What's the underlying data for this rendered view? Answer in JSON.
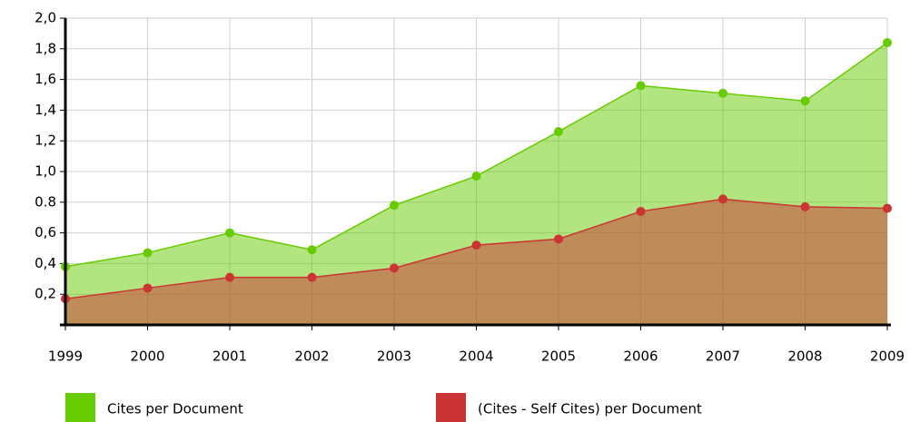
{
  "chart_data": {
    "type": "area",
    "categories": [
      "1999",
      "2000",
      "2001",
      "2002",
      "2003",
      "2004",
      "2005",
      "2006",
      "2007",
      "2008",
      "2009"
    ],
    "series": [
      {
        "name": "Cites per Document",
        "color": "#66cc00",
        "values": [
          0.38,
          0.47,
          0.6,
          0.49,
          0.78,
          0.97,
          1.26,
          1.56,
          1.51,
          1.46,
          1.84
        ]
      },
      {
        "name": "(Cites - Self Cites) per Document",
        "color": "#cc3333",
        "values": [
          0.17,
          0.24,
          0.31,
          0.31,
          0.37,
          0.52,
          0.56,
          0.74,
          0.82,
          0.77,
          0.76
        ]
      }
    ],
    "ylim": [
      0,
      2
    ],
    "yticks": [
      {
        "value": 0.2,
        "label": "0,2"
      },
      {
        "value": 0.4,
        "label": "0,4"
      },
      {
        "value": 0.6,
        "label": "0,6"
      },
      {
        "value": 0.8,
        "label": "0.8"
      },
      {
        "value": 1.0,
        "label": "1,0"
      },
      {
        "value": 1.2,
        "label": "1,2"
      },
      {
        "value": 1.4,
        "label": "1,4"
      },
      {
        "value": 1.6,
        "label": "1,6"
      },
      {
        "value": 1.8,
        "label": "1,8"
      },
      {
        "value": 2.0,
        "label": "2,0"
      }
    ],
    "grid": true,
    "legend": "bottom"
  }
}
